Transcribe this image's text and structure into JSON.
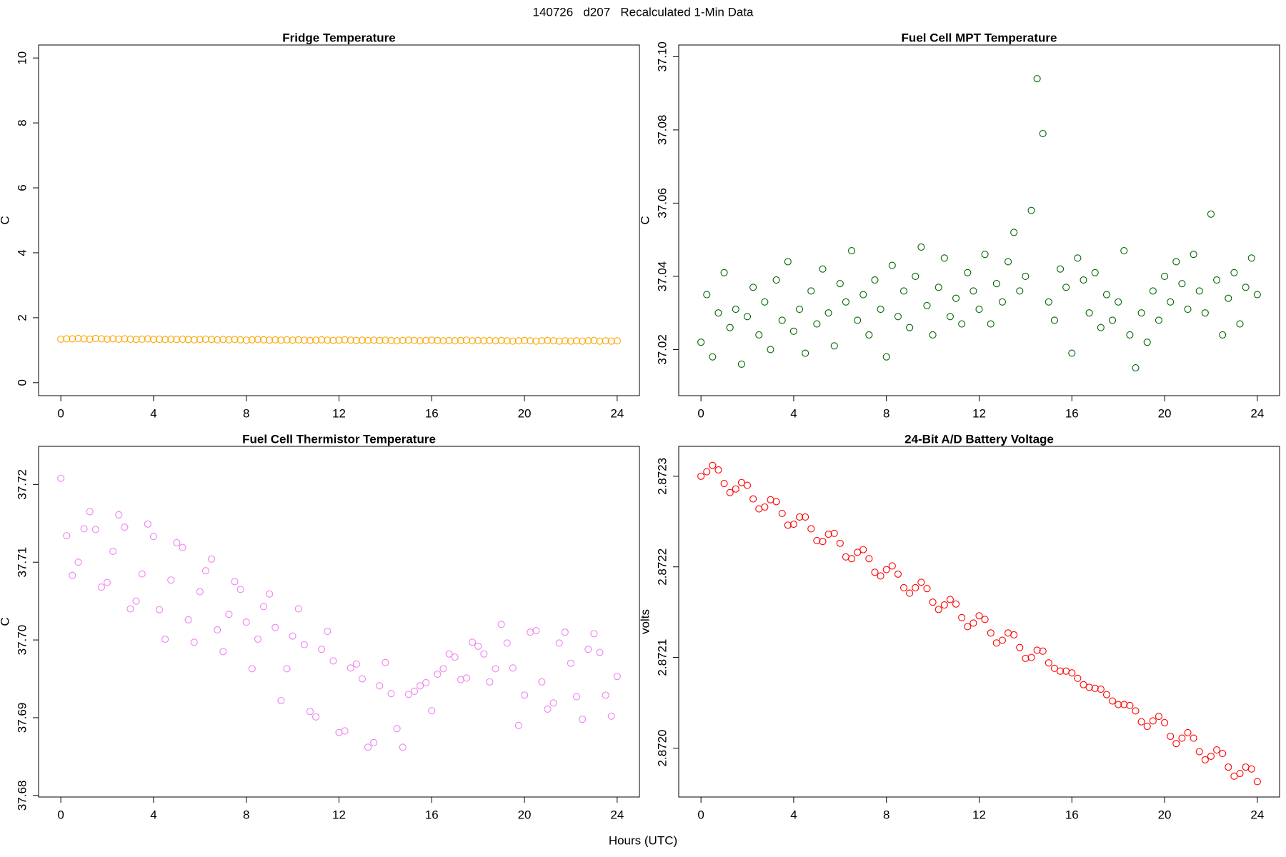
{
  "title": "140726   d207   Recalculated 1-Min Data",
  "xlabel": "Hours (UTC)",
  "chart_data": [
    {
      "type": "scatter",
      "title": "Fridge Temperature",
      "ylabel": "C",
      "color": "#FFA500",
      "x": [
        0,
        0.25,
        0.5,
        0.75,
        1,
        1.25,
        1.5,
        1.75,
        2,
        2.25,
        2.5,
        2.75,
        3,
        3.25,
        3.5,
        3.75,
        4,
        4.25,
        4.5,
        4.75,
        5,
        5.25,
        5.5,
        5.75,
        6,
        6.25,
        6.5,
        6.75,
        7,
        7.25,
        7.5,
        7.75,
        8,
        8.25,
        8.5,
        8.75,
        9,
        9.25,
        9.5,
        9.75,
        10,
        10.25,
        10.5,
        10.75,
        11,
        11.25,
        11.5,
        11.75,
        12,
        12.25,
        12.5,
        12.75,
        13,
        13.25,
        13.5,
        13.75,
        14,
        14.25,
        14.5,
        14.75,
        15,
        15.25,
        15.5,
        15.75,
        16,
        16.25,
        16.5,
        16.75,
        17,
        17.25,
        17.5,
        17.75,
        18,
        18.25,
        18.5,
        18.75,
        19,
        19.25,
        19.5,
        19.75,
        20,
        20.25,
        20.5,
        20.75,
        21,
        21.25,
        21.5,
        21.75,
        22,
        22.25,
        22.5,
        22.75,
        23,
        23.25,
        23.5,
        23.75,
        24
      ],
      "values": [
        1.34,
        1.35,
        1.35,
        1.36,
        1.35,
        1.34,
        1.36,
        1.35,
        1.34,
        1.35,
        1.34,
        1.35,
        1.34,
        1.33,
        1.34,
        1.35,
        1.33,
        1.34,
        1.33,
        1.34,
        1.33,
        1.34,
        1.33,
        1.32,
        1.33,
        1.34,
        1.33,
        1.32,
        1.33,
        1.32,
        1.33,
        1.32,
        1.31,
        1.32,
        1.33,
        1.32,
        1.31,
        1.32,
        1.31,
        1.32,
        1.31,
        1.32,
        1.31,
        1.3,
        1.31,
        1.32,
        1.31,
        1.3,
        1.31,
        1.32,
        1.31,
        1.3,
        1.31,
        1.3,
        1.31,
        1.3,
        1.31,
        1.3,
        1.29,
        1.3,
        1.31,
        1.3,
        1.29,
        1.3,
        1.31,
        1.3,
        1.29,
        1.3,
        1.29,
        1.3,
        1.31,
        1.29,
        1.3,
        1.29,
        1.3,
        1.29,
        1.3,
        1.29,
        1.28,
        1.29,
        1.3,
        1.29,
        1.28,
        1.29,
        1.3,
        1.29,
        1.28,
        1.29,
        1.28,
        1.29,
        1.28,
        1.29,
        1.3,
        1.28,
        1.29,
        1.28,
        1.29
      ],
      "xlim": [
        -0.96,
        24.96
      ],
      "xticks": [
        0,
        4,
        8,
        12,
        16,
        20,
        24
      ],
      "ylim": [
        -0.4,
        10.4
      ],
      "yticks": [
        0,
        2,
        4,
        6,
        8,
        10
      ]
    },
    {
      "type": "scatter",
      "title": "Fuel Cell MPT Temperature",
      "ylabel": "C",
      "color": "#006400",
      "x": [
        0,
        0.25,
        0.5,
        0.75,
        1,
        1.25,
        1.5,
        1.75,
        2,
        2.25,
        2.5,
        2.75,
        3,
        3.25,
        3.5,
        3.75,
        4,
        4.25,
        4.5,
        4.75,
        5,
        5.25,
        5.5,
        5.75,
        6,
        6.25,
        6.5,
        6.75,
        7,
        7.25,
        7.5,
        7.75,
        8,
        8.25,
        8.5,
        8.75,
        9,
        9.25,
        9.5,
        9.75,
        10,
        10.25,
        10.5,
        10.75,
        11,
        11.25,
        11.5,
        11.75,
        12,
        12.25,
        12.5,
        12.75,
        13,
        13.25,
        13.5,
        13.75,
        14,
        14.25,
        14.5,
        14.75,
        15,
        15.25,
        15.5,
        15.75,
        16,
        16.25,
        16.5,
        16.75,
        17,
        17.25,
        17.5,
        17.75,
        18,
        18.25,
        18.5,
        18.75,
        19,
        19.25,
        19.5,
        19.75,
        20,
        20.25,
        20.5,
        20.75,
        21,
        21.25,
        21.5,
        21.75,
        22,
        22.25,
        22.5,
        22.75,
        23,
        23.25,
        23.5,
        23.75,
        24
      ],
      "values": [
        37.022,
        37.035,
        37.018,
        37.03,
        37.041,
        37.026,
        37.031,
        37.016,
        37.029,
        37.037,
        37.024,
        37.033,
        37.02,
        37.039,
        37.028,
        37.044,
        37.025,
        37.031,
        37.019,
        37.036,
        37.027,
        37.042,
        37.03,
        37.021,
        37.038,
        37.033,
        37.047,
        37.028,
        37.035,
        37.024,
        37.039,
        37.031,
        37.018,
        37.043,
        37.029,
        37.036,
        37.026,
        37.04,
        37.048,
        37.032,
        37.024,
        37.037,
        37.045,
        37.029,
        37.034,
        37.027,
        37.041,
        37.036,
        37.031,
        37.046,
        37.027,
        37.038,
        37.033,
        37.044,
        37.052,
        37.036,
        37.04,
        37.058,
        37.094,
        37.079,
        37.033,
        37.028,
        37.042,
        37.037,
        37.019,
        37.045,
        37.039,
        37.03,
        37.041,
        37.026,
        37.035,
        37.028,
        37.033,
        37.047,
        37.024,
        37.015,
        37.03,
        37.022,
        37.036,
        37.028,
        37.04,
        37.033,
        37.044,
        37.038,
        37.031,
        37.046,
        37.036,
        37.03,
        37.057,
        37.039,
        37.024,
        37.034,
        37.041,
        37.027,
        37.037,
        37.045,
        37.035
      ],
      "xlim": [
        -0.96,
        24.96
      ],
      "xticks": [
        0,
        4,
        8,
        12,
        16,
        20,
        24
      ],
      "ylim": [
        37.0074,
        37.1032
      ],
      "yticks": [
        37.02,
        37.04,
        37.06,
        37.08,
        {
          "value": 37.1,
          "label": "37.10"
        }
      ]
    },
    {
      "type": "scatter",
      "title": "Fuel Cell Thermistor Temperature",
      "ylabel": "C",
      "color": "#EE82EE",
      "x": [
        0,
        0.25,
        0.5,
        0.75,
        1,
        1.25,
        1.5,
        1.75,
        2,
        2.25,
        2.5,
        2.75,
        3,
        3.25,
        3.5,
        3.75,
        4,
        4.25,
        4.5,
        4.75,
        5,
        5.25,
        5.5,
        5.75,
        6,
        6.25,
        6.5,
        6.75,
        7,
        7.25,
        7.5,
        7.75,
        8,
        8.25,
        8.5,
        8.75,
        9,
        9.25,
        9.5,
        9.75,
        10,
        10.25,
        10.5,
        10.75,
        11,
        11.25,
        11.5,
        11.75,
        12,
        12.25,
        12.5,
        12.75,
        13,
        13.25,
        13.5,
        13.75,
        14,
        14.25,
        14.5,
        14.75,
        15,
        15.25,
        15.5,
        15.75,
        16,
        16.25,
        16.5,
        16.75,
        17,
        17.25,
        17.5,
        17.75,
        18,
        18.25,
        18.5,
        18.75,
        19,
        19.25,
        19.5,
        19.75,
        20,
        20.25,
        20.5,
        20.75,
        21,
        21.25,
        21.5,
        21.75,
        22,
        22.25,
        22.5,
        22.75,
        23,
        23.25,
        23.5,
        23.75,
        24
      ],
      "values": [
        37.7208,
        37.7134,
        37.7083,
        37.71,
        37.7143,
        37.7165,
        37.7142,
        37.7068,
        37.7074,
        37.7114,
        37.7161,
        37.7145,
        37.704,
        37.705,
        37.7085,
        37.7149,
        37.7133,
        37.7039,
        37.7001,
        37.7077,
        37.7125,
        37.7119,
        37.7026,
        37.6997,
        37.7062,
        37.7089,
        37.7104,
        37.7013,
        37.6985,
        37.7033,
        37.7075,
        37.7065,
        37.7023,
        37.6963,
        37.7001,
        37.7043,
        37.7059,
        37.7016,
        37.6922,
        37.6963,
        37.7005,
        37.704,
        37.6994,
        37.6908,
        37.6901,
        37.6988,
        37.7011,
        37.6973,
        37.6881,
        37.6883,
        37.6964,
        37.6969,
        37.695,
        37.6862,
        37.6868,
        37.6941,
        37.6971,
        37.6931,
        37.6886,
        37.6862,
        37.693,
        37.6934,
        37.6941,
        37.6945,
        37.6909,
        37.6956,
        37.6963,
        37.6982,
        37.6978,
        37.6949,
        37.6951,
        37.6997,
        37.6992,
        37.6982,
        37.6946,
        37.6963,
        37.702,
        37.6996,
        37.6964,
        37.689,
        37.6929,
        37.701,
        37.7012,
        37.6946,
        37.6911,
        37.6919,
        37.6996,
        37.701,
        37.697,
        37.6927,
        37.6898,
        37.6988,
        37.7008,
        37.6984,
        37.6929,
        37.6902,
        37.6953
      ],
      "xlim": [
        -0.96,
        24.96
      ],
      "xticks": [
        0,
        4,
        8,
        12,
        16,
        20,
        24
      ],
      "ylim": [
        37.6798,
        37.7249
      ],
      "yticks": [
        37.68,
        37.69,
        {
          "value": 37.7,
          "label": "37.70"
        },
        37.71,
        37.72
      ]
    },
    {
      "type": "scatter",
      "title": "24-Bit A/D Battery Voltage",
      "ylabel": "volts",
      "color": "#FF0000",
      "x": [
        0,
        0.25,
        0.5,
        0.75,
        1,
        1.25,
        1.5,
        1.75,
        2,
        2.25,
        2.5,
        2.75,
        3,
        3.25,
        3.5,
        3.75,
        4,
        4.25,
        4.5,
        4.75,
        5,
        5.25,
        5.5,
        5.75,
        6,
        6.25,
        6.5,
        6.75,
        7,
        7.25,
        7.5,
        7.75,
        8,
        8.25,
        8.5,
        8.75,
        9,
        9.25,
        9.5,
        9.75,
        10,
        10.25,
        10.5,
        10.75,
        11,
        11.25,
        11.5,
        11.75,
        12,
        12.25,
        12.5,
        12.75,
        13,
        13.25,
        13.5,
        13.75,
        14,
        14.25,
        14.5,
        14.75,
        15,
        15.25,
        15.5,
        15.75,
        16,
        16.25,
        16.5,
        16.75,
        17,
        17.25,
        17.5,
        17.75,
        18,
        18.25,
        18.5,
        18.75,
        19,
        19.25,
        19.5,
        19.75,
        20,
        20.25,
        20.5,
        20.75,
        21,
        21.25,
        21.5,
        21.75,
        22,
        22.25,
        22.5,
        22.75,
        23,
        23.25,
        23.5,
        23.75,
        24
      ],
      "values": [
        2.8723,
        2.872305,
        2.872312,
        2.872307,
        2.872292,
        2.872282,
        2.872286,
        2.872293,
        2.87229,
        2.872275,
        2.872264,
        2.872266,
        2.872274,
        2.872272,
        2.872259,
        2.872246,
        2.872247,
        2.872255,
        2.872255,
        2.872242,
        2.872229,
        2.872228,
        2.872236,
        2.872237,
        2.872226,
        2.872211,
        2.872209,
        2.872216,
        2.872219,
        2.872209,
        2.872194,
        2.87219,
        2.872197,
        2.872201,
        2.872192,
        2.872177,
        2.872171,
        2.872177,
        2.872183,
        2.872176,
        2.872161,
        2.872153,
        2.872158,
        2.872164,
        2.872159,
        2.872144,
        2.872134,
        2.872138,
        2.872146,
        2.872142,
        2.872127,
        2.872116,
        2.872119,
        2.872127,
        2.872125,
        2.872111,
        2.872099,
        2.8721,
        2.872108,
        2.872107,
        2.872094,
        2.872088,
        2.872085,
        2.872085,
        2.872083,
        2.872077,
        2.87207,
        2.872067,
        2.872066,
        2.872065,
        2.872059,
        2.872052,
        2.872048,
        2.872048,
        2.872047,
        2.872041,
        2.872029,
        2.872024,
        2.87203,
        2.872035,
        2.872028,
        2.872013,
        2.872005,
        2.872011,
        2.872017,
        2.872011,
        2.871996,
        2.871987,
        2.871991,
        2.871998,
        2.871994,
        2.871979,
        2.871969,
        2.871972,
        2.871979,
        2.871977,
        2.871963
      ],
      "xlim": [
        -0.96,
        24.96
      ],
      "xticks": [
        0,
        4,
        8,
        12,
        16,
        20,
        24
      ],
      "ylim": [
        2.871946,
        2.872333
      ],
      "yticks": [
        {
          "value": 2.872,
          "label": "2.8720"
        },
        2.8721,
        2.8722,
        2.8723
      ]
    }
  ]
}
